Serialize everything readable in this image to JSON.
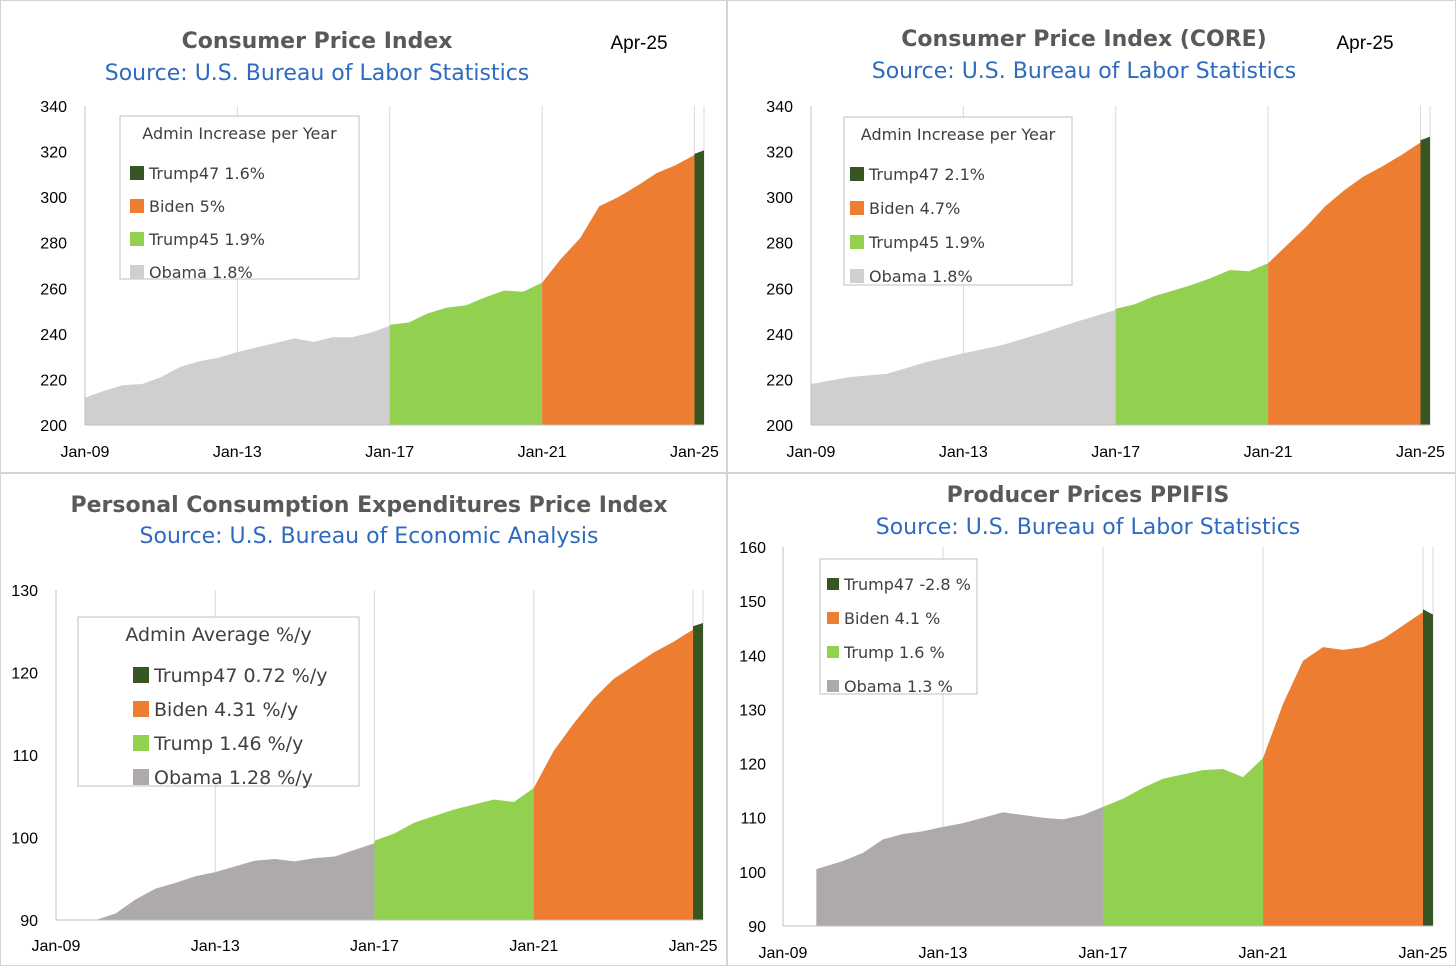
{
  "chart_data": [
    {
      "type": "area",
      "title": "Consumer Price Index",
      "subtitle": "Source: U.S. Bureau of Labor Statistics",
      "date_label": "Apr-25",
      "xlabel": "",
      "ylabel": "",
      "ylim": [
        200,
        340
      ],
      "yticks": [
        200,
        220,
        240,
        260,
        280,
        300,
        320,
        340
      ],
      "xlim": [
        "Jan-09",
        "Apr-25"
      ],
      "xticks": [
        "Jan-09",
        "Jan-13",
        "Jan-17",
        "Jan-21",
        "Jan-25"
      ],
      "grid": "vertical",
      "legend": {
        "title": "Admin Increase per Year",
        "placement": "top-left",
        "entries": [
          {
            "label": "Trump47 1.6%",
            "color": "#375623"
          },
          {
            "label": "Biden 5%",
            "color": "#ed7d31"
          },
          {
            "label": "Trump45 1.9%",
            "color": "#92d050"
          },
          {
            "label": "Obama 1.8%",
            "color": "#d0cece"
          }
        ]
      },
      "series": [
        {
          "name": "Obama",
          "color": "#d0cece",
          "x": [
            "Jan-09",
            "Jul-09",
            "Jan-10",
            "Jul-10",
            "Jan-11",
            "Jul-11",
            "Jan-12",
            "Jul-12",
            "Jan-13",
            "Jul-13",
            "Jan-14",
            "Jul-14",
            "Jan-15",
            "Jul-15",
            "Jan-16",
            "Jul-16",
            "Jan-17"
          ],
          "values": [
            212,
            215,
            217.5,
            218,
            221,
            225.5,
            228,
            229.5,
            232,
            234,
            236,
            238,
            236.5,
            238.5,
            238.5,
            240.5,
            243.5
          ]
        },
        {
          "name": "Trump45",
          "color": "#92d050",
          "x": [
            "Jan-17",
            "Jul-17",
            "Jan-18",
            "Jul-18",
            "Jan-19",
            "Jul-19",
            "Jan-20",
            "Jul-20",
            "Jan-21"
          ],
          "values": [
            244,
            245,
            249,
            251.5,
            252.5,
            256,
            259,
            258.5,
            262.5
          ]
        },
        {
          "name": "Biden",
          "color": "#ed7d31",
          "x": [
            "Jan-21",
            "Jul-21",
            "Jan-22",
            "Jul-22",
            "Jan-23",
            "Jul-23",
            "Jan-24",
            "Jul-24",
            "Jan-25"
          ],
          "values": [
            262.5,
            273,
            282,
            296,
            300,
            305,
            310.5,
            314,
            318.5
          ]
        },
        {
          "name": "Trump47",
          "color": "#375623",
          "x": [
            "Jan-25",
            "Apr-25"
          ],
          "values": [
            319,
            320.5
          ]
        }
      ]
    },
    {
      "type": "area",
      "title": "Consumer Price Index (CORE)",
      "subtitle": "Source: U.S. Bureau of Labor Statistics",
      "date_label": "Apr-25",
      "xlabel": "",
      "ylabel": "",
      "ylim": [
        200,
        340
      ],
      "yticks": [
        200,
        220,
        240,
        260,
        280,
        300,
        320,
        340
      ],
      "xlim": [
        "Jan-09",
        "Apr-25"
      ],
      "xticks": [
        "Jan-09",
        "Jan-13",
        "Jan-17",
        "Jan-21",
        "Jan-25"
      ],
      "grid": "vertical",
      "legend": {
        "title": "Admin Increase per Year",
        "placement": "top-left",
        "entries": [
          {
            "label": "Trump47 2.1%",
            "color": "#375623"
          },
          {
            "label": "Biden 4.7%",
            "color": "#ed7d31"
          },
          {
            "label": "Trump45 1.9%",
            "color": "#92d050"
          },
          {
            "label": "Obama 1.8%",
            "color": "#d0cece"
          }
        ]
      },
      "series": [
        {
          "name": "Obama",
          "color": "#d0cece",
          "x": [
            "Jan-09",
            "Jan-10",
            "Jan-11",
            "Jan-12",
            "Jan-13",
            "Jan-14",
            "Jan-15",
            "Jan-16",
            "Jan-17"
          ],
          "values": [
            218,
            221,
            222.5,
            227.5,
            231.5,
            235,
            240,
            245.5,
            250.5
          ]
        },
        {
          "name": "Trump45",
          "color": "#92d050",
          "x": [
            "Jan-17",
            "Jul-17",
            "Jan-18",
            "Jul-18",
            "Jan-19",
            "Jul-19",
            "Jan-20",
            "Jul-20",
            "Jan-21"
          ],
          "values": [
            251,
            253,
            256.5,
            259,
            261.5,
            264.5,
            268,
            267.5,
            271
          ]
        },
        {
          "name": "Biden",
          "color": "#ed7d31",
          "x": [
            "Jan-21",
            "Jul-21",
            "Jan-22",
            "Jul-22",
            "Jan-23",
            "Jul-23",
            "Jan-24",
            "Jul-24",
            "Jan-25"
          ],
          "values": [
            271,
            279,
            287,
            296,
            303,
            309,
            313.5,
            318.5,
            324
          ]
        },
        {
          "name": "Trump47",
          "color": "#375623",
          "x": [
            "Jan-25",
            "Apr-25"
          ],
          "values": [
            325,
            326.5
          ]
        }
      ]
    },
    {
      "type": "area",
      "title": "Personal Consumption Expenditures Price Index",
      "subtitle": "Source: U.S. Bureau of Economic Analysis",
      "date_label": "",
      "xlabel": "",
      "ylabel": "",
      "ylim": [
        90,
        130
      ],
      "yticks": [
        90,
        100,
        110,
        120,
        130
      ],
      "xlim": [
        "Jan-09",
        "Apr-25"
      ],
      "xticks": [
        "Jan-09",
        "Jan-13",
        "Jan-17",
        "Jan-21",
        "Jan-25"
      ],
      "grid": "vertical",
      "legend": {
        "title": "Admin Average %/y",
        "placement": "top-left",
        "entries": [
          {
            "label": "Trump47 0.72 %/y",
            "color": "#375623"
          },
          {
            "label": "Biden 4.31 %/y",
            "color": "#ed7d31"
          },
          {
            "label": "Trump 1.46 %/y",
            "color": "#92d050"
          },
          {
            "label": "Obama 1.28 %/y",
            "color": "#aeaaaa"
          }
        ]
      },
      "series": [
        {
          "name": "Obama",
          "color": "#aeaaaa",
          "x": [
            "Jan-09",
            "Jan-10",
            "Jul-10",
            "Jan-11",
            "Jul-11",
            "Jan-12",
            "Jul-12",
            "Jan-13",
            "Jul-13",
            "Jan-14",
            "Jul-14",
            "Jan-15",
            "Jul-15",
            "Jan-16",
            "Jul-16",
            "Jan-17"
          ],
          "values": [
            90,
            90,
            90.8,
            92.5,
            93.8,
            94.5,
            95.3,
            95.8,
            96.5,
            97.2,
            97.4,
            97.1,
            97.5,
            97.7,
            98.5,
            99.3
          ]
        },
        {
          "name": "Trump",
          "color": "#92d050",
          "x": [
            "Jan-17",
            "Jul-17",
            "Jan-18",
            "Jul-18",
            "Jan-19",
            "Jul-19",
            "Jan-20",
            "Jul-20",
            "Jan-21"
          ],
          "values": [
            99.6,
            100.5,
            101.8,
            102.6,
            103.4,
            104,
            104.6,
            104.3,
            106
          ]
        },
        {
          "name": "Biden",
          "color": "#ed7d31",
          "x": [
            "Jan-21",
            "Jul-21",
            "Jan-22",
            "Jul-22",
            "Jan-23",
            "Jul-23",
            "Jan-24",
            "Jul-24",
            "Jan-25"
          ],
          "values": [
            106,
            110.5,
            113.8,
            116.8,
            119.2,
            120.8,
            122.4,
            123.7,
            125.2
          ]
        },
        {
          "name": "Trump47",
          "color": "#375623",
          "x": [
            "Jan-25",
            "Apr-25"
          ],
          "values": [
            125.6,
            126
          ]
        }
      ]
    },
    {
      "type": "area",
      "title": "Producer Prices PPIFIS",
      "subtitle": "Source: U.S. Bureau of Labor Statistics",
      "date_label": "",
      "xlabel": "",
      "ylabel": "",
      "ylim": [
        90,
        160
      ],
      "yticks": [
        90,
        100,
        110,
        120,
        130,
        140,
        150,
        160
      ],
      "xlim": [
        "Jan-09",
        "Apr-25"
      ],
      "xticks": [
        "Jan-09",
        "Jan-13",
        "Jan-17",
        "Jan-21",
        "Jan-25"
      ],
      "grid": "vertical",
      "legend": {
        "title": "",
        "placement": "top-left",
        "entries": [
          {
            "label": "Trump47 -2.8 %",
            "color": "#375623"
          },
          {
            "label": "Biden 4.1 %",
            "color": "#ed7d31"
          },
          {
            "label": "Trump 1.6 %",
            "color": "#92d050"
          },
          {
            "label": "Obama 1.3 %",
            "color": "#aeaaaa"
          }
        ]
      },
      "series": [
        {
          "name": "Obama",
          "color": "#aeaaaa",
          "x": [
            "Nov-09",
            "Jul-10",
            "Jan-11",
            "Jul-11",
            "Jan-12",
            "Jul-12",
            "Jan-13",
            "Jul-13",
            "Jan-14",
            "Jul-14",
            "Jan-15",
            "Jul-15",
            "Jan-16",
            "Jul-16",
            "Jan-17"
          ],
          "values": [
            100.5,
            102,
            103.5,
            106,
            107,
            107.5,
            108.3,
            109,
            110,
            111,
            110.5,
            110,
            109.7,
            110.5,
            112
          ]
        },
        {
          "name": "Trump",
          "color": "#92d050",
          "x": [
            "Jan-17",
            "Jul-17",
            "Jan-18",
            "Jul-18",
            "Jan-19",
            "Jul-19",
            "Jan-20",
            "Jul-20",
            "Jan-21"
          ],
          "values": [
            112,
            113.5,
            115.5,
            117.2,
            118,
            118.8,
            119,
            117.5,
            121
          ]
        },
        {
          "name": "Biden",
          "color": "#ed7d31",
          "x": [
            "Jan-21",
            "Jul-21",
            "Jan-22",
            "Jul-22",
            "Jan-23",
            "Jul-23",
            "Jan-24",
            "Jul-24",
            "Jan-25"
          ],
          "values": [
            121,
            131,
            139,
            141.5,
            141,
            141.5,
            143,
            145.5,
            148
          ]
        },
        {
          "name": "Trump47",
          "color": "#375623",
          "x": [
            "Jan-25",
            "Apr-25"
          ],
          "values": [
            148.5,
            147.5
          ]
        }
      ]
    }
  ]
}
